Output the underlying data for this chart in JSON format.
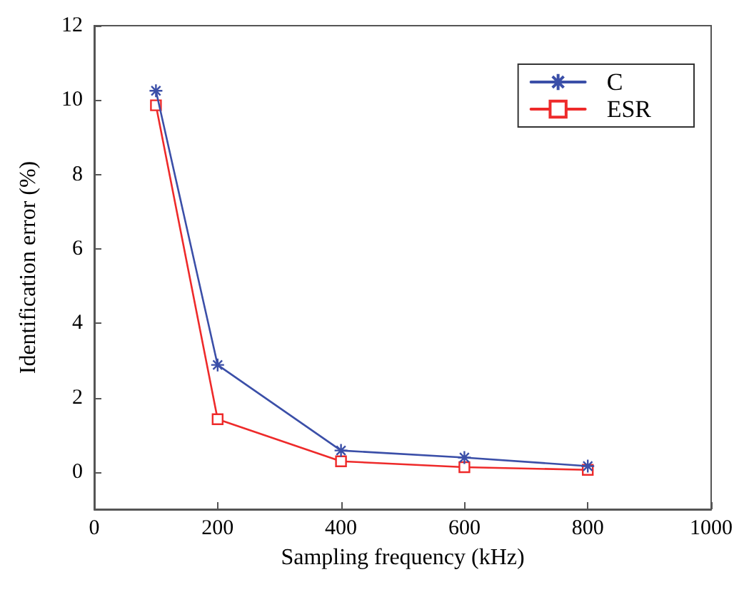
{
  "chart_data": {
    "type": "line",
    "xlabel": "Sampling frequency (kHz)",
    "ylabel": "Identification error (%)",
    "x": [
      100,
      200,
      400,
      600,
      800
    ],
    "series": [
      {
        "name": "C",
        "color": "#3b4fa8",
        "marker": "cross",
        "values": [
          10.25,
          2.88,
          0.58,
          0.39,
          0.16
        ]
      },
      {
        "name": "ESR",
        "color": "#ee2a2a",
        "marker": "square",
        "values": [
          9.86,
          1.42,
          0.29,
          0.13,
          0.06
        ]
      }
    ],
    "xlim": [
      0,
      1000
    ],
    "xticks": [
      0,
      200,
      400,
      600,
      800,
      1000
    ],
    "ylim": [
      -1,
      12
    ],
    "yticks": [
      0,
      2,
      4,
      6,
      8,
      10,
      12
    ],
    "grid": false,
    "legend": "top right",
    "line_style": "solid"
  }
}
